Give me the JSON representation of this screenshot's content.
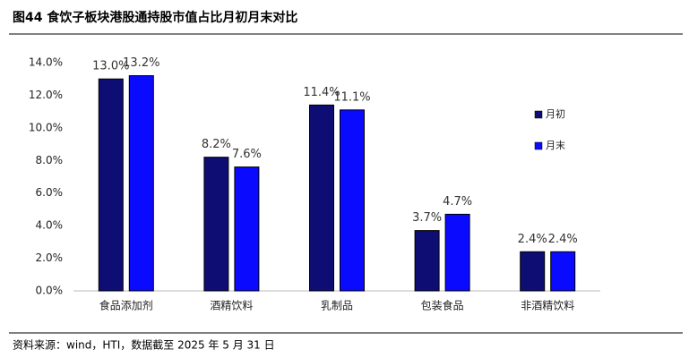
{
  "chart_data": {
    "type": "bar",
    "title": "图44 食饮子板块港股通持股市值占比月初月末对比",
    "source": "资料来源：wind，HTI，数据截至 2025 年 5 月 31 日",
    "categories": [
      "食品添加剂",
      "酒精饮料",
      "乳制品",
      "包装食品",
      "非酒精饮料"
    ],
    "series": [
      {
        "name": "月初",
        "color": "#0d0d73",
        "values": [
          13.0,
          8.2,
          11.4,
          3.7,
          2.4
        ],
        "value_labels": [
          "13.0%",
          "8.2%",
          "11.4%",
          "3.7%",
          "2.4%"
        ]
      },
      {
        "name": "月末",
        "color": "#0a0aff",
        "values": [
          13.2,
          7.6,
          11.1,
          4.7,
          2.4
        ],
        "value_labels": [
          "13.2%",
          "7.6%",
          "11.1%",
          "4.7%",
          "2.4%"
        ]
      }
    ],
    "ylim": [
      0,
      14
    ],
    "yticks": [
      {
        "value": 0,
        "label": "0.0%"
      },
      {
        "value": 2,
        "label": "2.0%"
      },
      {
        "value": 4,
        "label": "4.0%"
      },
      {
        "value": 6,
        "label": "6.0%"
      },
      {
        "value": 8,
        "label": "8.0%"
      },
      {
        "value": 10,
        "label": "10.0%"
      },
      {
        "value": 12,
        "label": "12.0%"
      },
      {
        "value": 14,
        "label": "14.0%"
      }
    ],
    "grid": false
  }
}
